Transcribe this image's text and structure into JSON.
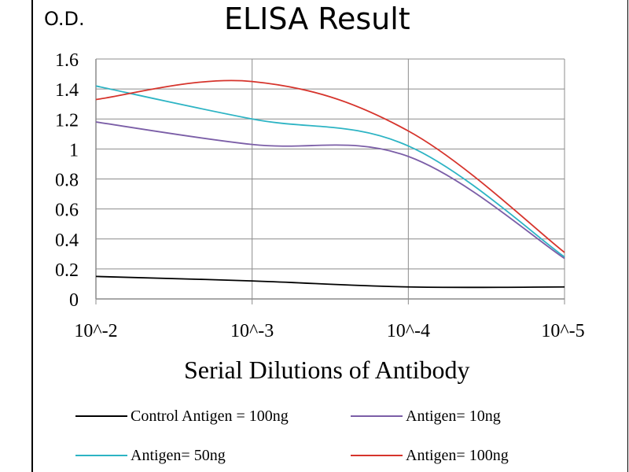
{
  "chart_data": {
    "type": "line",
    "title": "ELISA Result",
    "ylabel": "O.D.",
    "xlabel": "Serial Dilutions  of Antibody",
    "x_categories": [
      "10^-2",
      "10^-3",
      "10^-4",
      "10^-5"
    ],
    "y_ticks": [
      "0",
      "0.2",
      "0.4",
      "0.6",
      "0.8",
      "1",
      "1.2",
      "1.4",
      "1.6"
    ],
    "ylim": [
      0,
      1.6
    ],
    "grid": "horizontal",
    "legend_position": "bottom",
    "series": [
      {
        "name": "Control Antigen = 100ng",
        "color": "#000000",
        "values": [
          0.15,
          0.12,
          0.08,
          0.08
        ]
      },
      {
        "name": "Antigen= 10ng",
        "color": "#7b5ea7",
        "values": [
          1.18,
          1.03,
          0.95,
          0.27
        ]
      },
      {
        "name": "Antigen= 50ng",
        "color": "#2db4c4",
        "values": [
          1.42,
          1.2,
          1.02,
          0.28
        ]
      },
      {
        "name": "Antigen= 100ng",
        "color": "#d6342c",
        "values": [
          1.33,
          1.45,
          1.12,
          0.31
        ]
      }
    ]
  }
}
